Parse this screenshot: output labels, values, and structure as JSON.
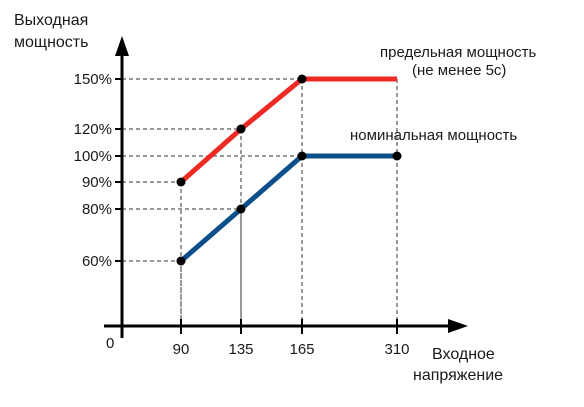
{
  "chart_data": {
    "type": "line",
    "y_axis_title_line1": "Выходная",
    "y_axis_title_line2": "мощность",
    "x_axis_title_line1": "Входное",
    "x_axis_title_line2": "напряжение",
    "origin_label": "0",
    "x_ticks": [
      90,
      135,
      165,
      310
    ],
    "x_tick_labels": [
      "90",
      "135",
      "165",
      "310"
    ],
    "y_ticks": [
      60,
      80,
      90,
      100,
      120,
      150
    ],
    "y_tick_labels": [
      "60%",
      "80%",
      "90%",
      "100%",
      "120%",
      "150%"
    ],
    "series": [
      {
        "name_line1": "предельная мощность",
        "name_line2": "(не  менее 5с)",
        "color": "#ee2a24",
        "points": [
          [
            90,
            90
          ],
          [
            135,
            120
          ],
          [
            165,
            150
          ],
          [
            310,
            150
          ]
        ],
        "markers": [
          [
            90,
            90
          ],
          [
            135,
            120
          ],
          [
            165,
            150
          ]
        ]
      },
      {
        "name_line1": "номинальная мощность",
        "name_line2": "",
        "color": "#0d4f8a",
        "points": [
          [
            90,
            60
          ],
          [
            135,
            80
          ],
          [
            165,
            100
          ],
          [
            310,
            100
          ]
        ],
        "markers": [
          [
            90,
            60
          ],
          [
            135,
            80
          ],
          [
            165,
            100
          ],
          [
            310,
            100
          ]
        ]
      }
    ]
  }
}
